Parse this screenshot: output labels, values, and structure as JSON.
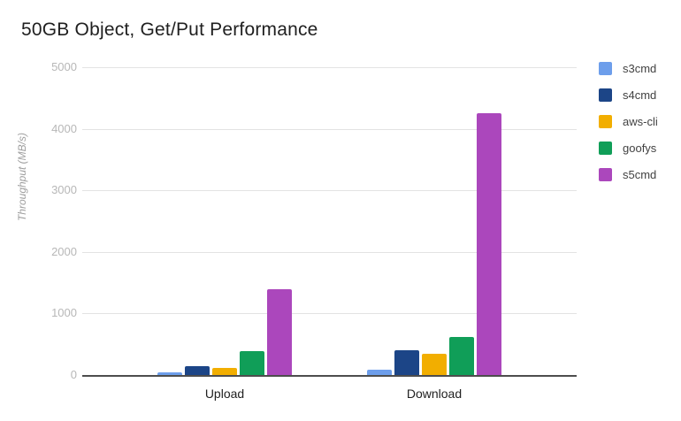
{
  "page": {
    "background": "#ffffff"
  },
  "chart_data": {
    "type": "bar",
    "title": "50GB Object, Get/Put Performance",
    "ylabel": "Throughput (MB/s)",
    "xlabel": "",
    "categories": [
      "Upload",
      "Download"
    ],
    "series": [
      {
        "name": "s3cmd",
        "color": "#6d9eeb",
        "values": [
          50,
          80
        ]
      },
      {
        "name": "s4cmd",
        "color": "#1c4587",
        "values": [
          140,
          400
        ]
      },
      {
        "name": "aws-cli",
        "color": "#f2ae00",
        "values": [
          115,
          350
        ]
      },
      {
        "name": "goofys",
        "color": "#109e58",
        "values": [
          390,
          620
        ]
      },
      {
        "name": "s5cmd",
        "color": "#ab47bc",
        "values": [
          1400,
          4260
        ]
      }
    ],
    "ylim": [
      0,
      5000
    ],
    "yticks": [
      0,
      1000,
      2000,
      3000,
      4000,
      5000
    ],
    "grid": true,
    "legend_position": "right",
    "colors": {
      "gridline": "#e3e3e3",
      "axis_line": "#4d4d4d",
      "tick_label": "#b7b7b7",
      "category_label": "#212121",
      "title": "#1f1f1f",
      "axis_title": "#9e9e9e"
    }
  }
}
